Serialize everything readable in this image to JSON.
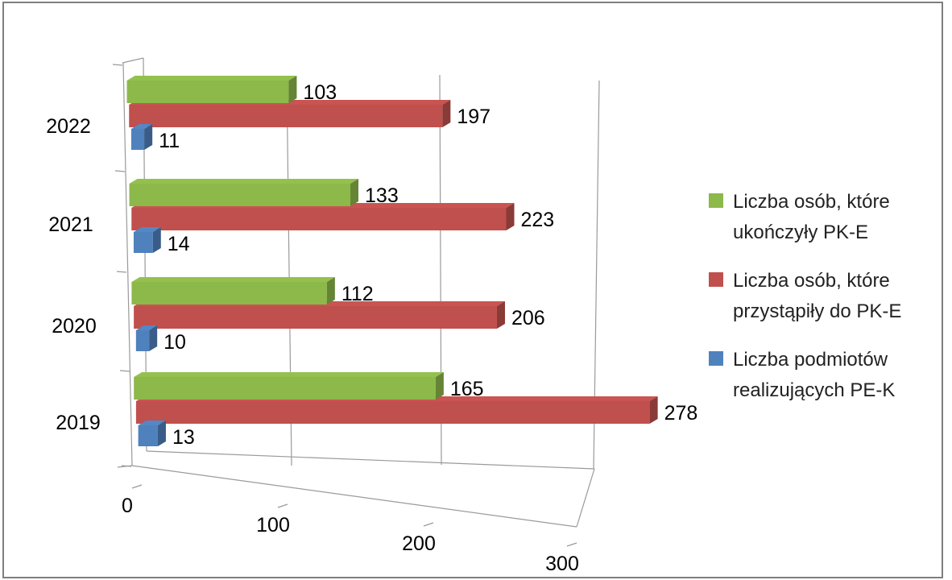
{
  "chart_data": {
    "type": "bar",
    "orientation": "horizontal",
    "style": "3d-clustered",
    "categories": [
      "2019",
      "2020",
      "2021",
      "2022"
    ],
    "series": [
      {
        "name": "Liczba osób, które ukończyły PK-E",
        "color": "#8db84a",
        "values": [
          165,
          112,
          133,
          103
        ]
      },
      {
        "name": "Liczba osób, które przystąpiły do PK-E",
        "color": "#c0504d",
        "values": [
          278,
          206,
          223,
          197
        ]
      },
      {
        "name": "Liczba podmiotów realizujących PE-K",
        "color": "#4f81bd",
        "values": [
          13,
          10,
          14,
          11
        ]
      }
    ],
    "x_ticks": [
      "0",
      "100",
      "200",
      "300"
    ],
    "xlim": [
      0,
      300
    ],
    "grid": true,
    "legend_position": "right"
  },
  "legend": {
    "items": [
      {
        "line1": "Liczba osób, które",
        "line2": "ukończyły PK-E",
        "color": "#8db84a"
      },
      {
        "line1": "Liczba osób, które",
        "line2": "przystąpiły do PK-E",
        "color": "#c0504d"
      },
      {
        "line1": "Liczba podmiotów",
        "line2": "realizujących PE-K",
        "color": "#4f81bd"
      }
    ]
  }
}
